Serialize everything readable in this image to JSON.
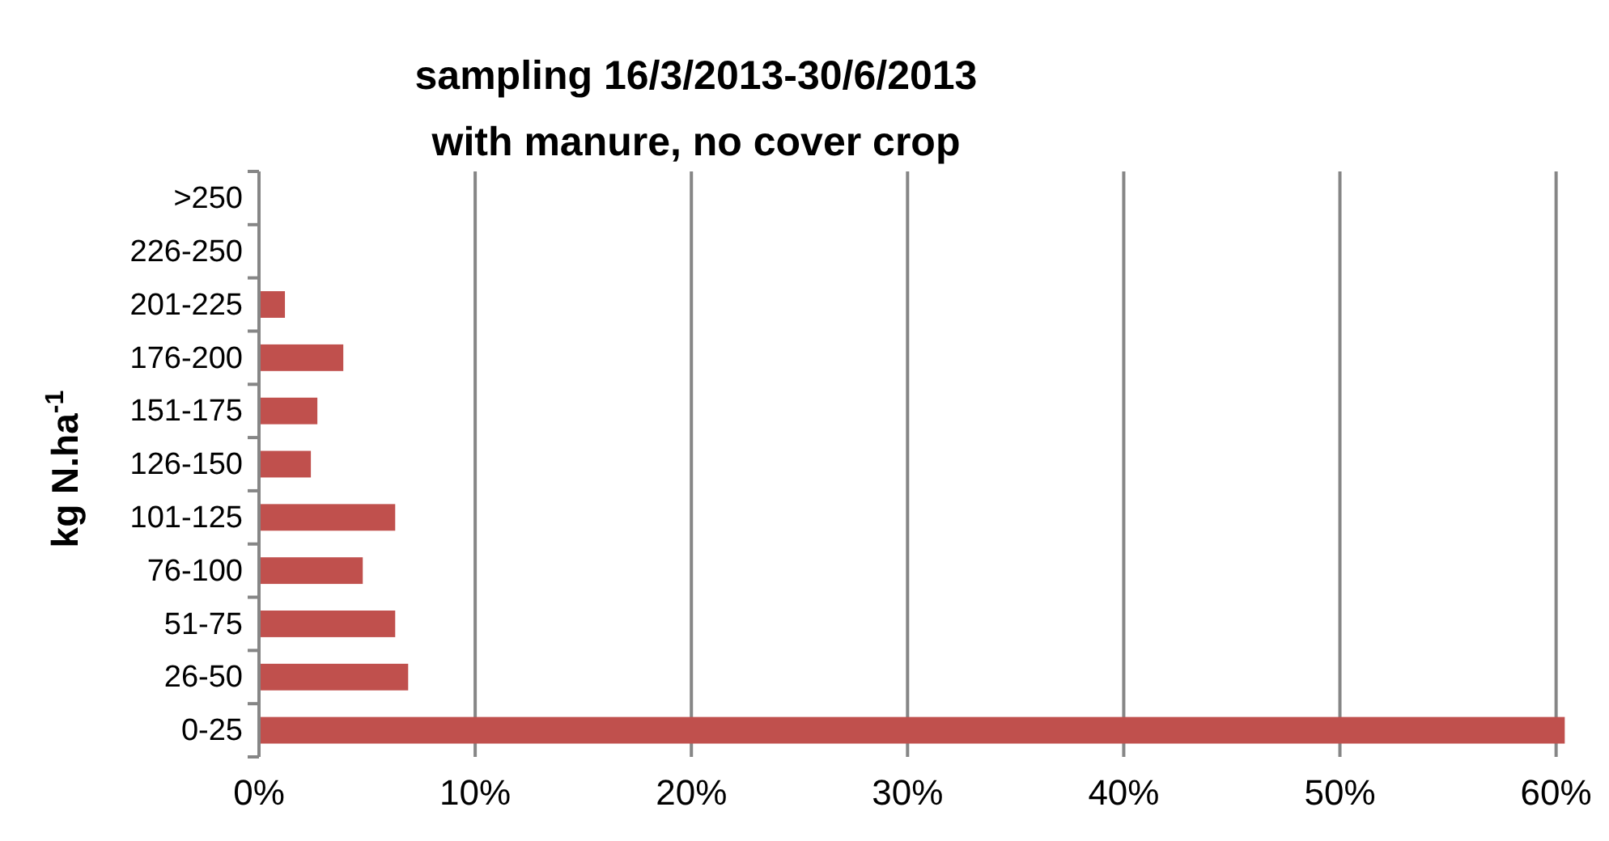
{
  "chart_data": {
    "type": "bar",
    "orientation": "horizontal",
    "title": "sampling 16/3/2013-30/6/2013",
    "subtitle": "with manure, no cover crop",
    "ylabel": "kg N.ha$^{-1}$",
    "categories": [
      ">250",
      "226-250",
      "201-225",
      "176-200",
      "151-175",
      "126-150",
      "101-125",
      "76-100",
      "51-75",
      "26-50",
      "0-25"
    ],
    "series": [
      {
        "color": "#c0504d",
        "values": [
          0,
          0,
          1.2,
          3.9,
          2.7,
          2.4,
          6.3,
          4.8,
          6.3,
          6.9,
          60.4
        ]
      }
    ],
    "xlim": [
      0,
      60.5
    ],
    "xticks": [
      {
        "value": 0,
        "label": "0%"
      },
      {
        "value": 10,
        "label": "10%"
      },
      {
        "value": 20,
        "label": "20%"
      },
      {
        "value": 30,
        "label": "30%"
      },
      {
        "value": 40,
        "label": "40%"
      },
      {
        "value": 50,
        "label": "50%"
      },
      {
        "value": 60,
        "label": "60%"
      }
    ],
    "grid": "x"
  }
}
